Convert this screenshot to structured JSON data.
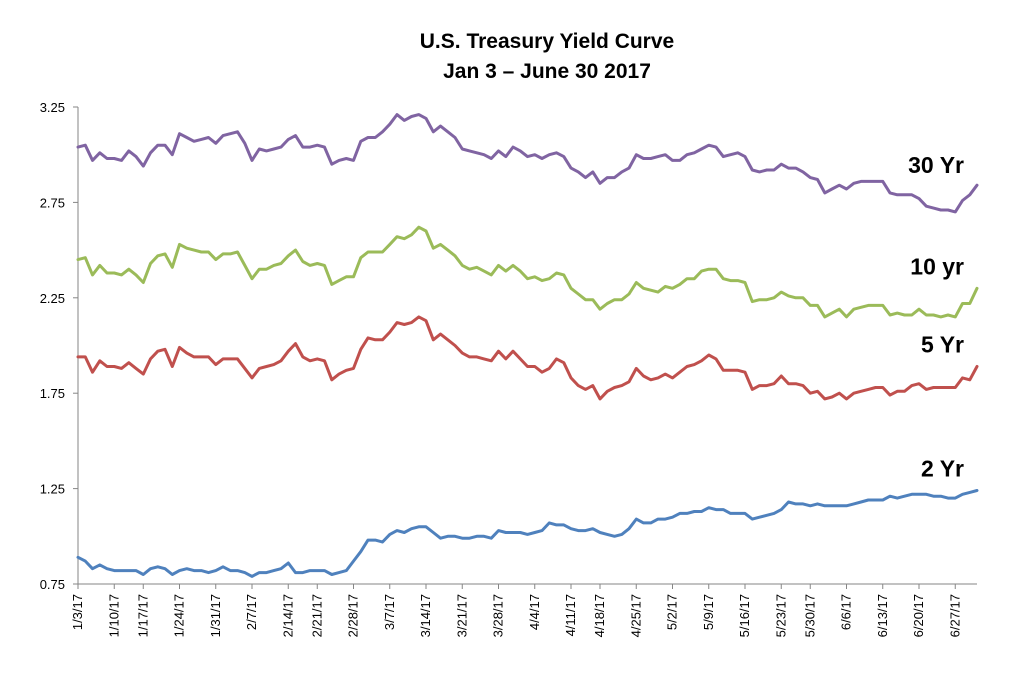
{
  "chart_data": {
    "type": "line",
    "title": "U.S. Treasury Yield Curve",
    "subtitle": "Jan 3 – June 30 2017",
    "xlabel": "",
    "ylabel": "",
    "ylim": [
      0.75,
      3.25
    ],
    "yticks": [
      "0.75",
      "1.25",
      "1.75",
      "2.25",
      "2.75",
      "3.25"
    ],
    "grid": false,
    "legend": "none",
    "x": [
      "1/3/17",
      "1/4/17",
      "1/5/17",
      "1/6/17",
      "1/9/17",
      "1/10/17",
      "1/11/17",
      "1/12/17",
      "1/13/17",
      "1/17/17",
      "1/18/17",
      "1/19/17",
      "1/20/17",
      "1/23/17",
      "1/24/17",
      "1/25/17",
      "1/26/17",
      "1/27/17",
      "1/30/17",
      "1/31/17",
      "2/1/17",
      "2/2/17",
      "2/3/17",
      "2/6/17",
      "2/7/17",
      "2/8/17",
      "2/9/17",
      "2/10/17",
      "2/13/17",
      "2/14/17",
      "2/15/17",
      "2/16/17",
      "2/17/17",
      "2/21/17",
      "2/22/17",
      "2/23/17",
      "2/24/17",
      "2/27/17",
      "2/28/17",
      "3/1/17",
      "3/2/17",
      "3/3/17",
      "3/6/17",
      "3/7/17",
      "3/8/17",
      "3/9/17",
      "3/10/17",
      "3/13/17",
      "3/14/17",
      "3/15/17",
      "3/16/17",
      "3/17/17",
      "3/20/17",
      "3/21/17",
      "3/22/17",
      "3/23/17",
      "3/24/17",
      "3/27/17",
      "3/28/17",
      "3/29/17",
      "3/30/17",
      "3/31/17",
      "4/3/17",
      "4/4/17",
      "4/5/17",
      "4/6/17",
      "4/7/17",
      "4/10/17",
      "4/11/17",
      "4/12/17",
      "4/13/17",
      "4/17/17",
      "4/18/17",
      "4/19/17",
      "4/20/17",
      "4/21/17",
      "4/24/17",
      "4/25/17",
      "4/26/17",
      "4/27/17",
      "4/28/17",
      "5/1/17",
      "5/2/17",
      "5/3/17",
      "5/4/17",
      "5/5/17",
      "5/8/17",
      "5/9/17",
      "5/10/17",
      "5/11/17",
      "5/12/17",
      "5/15/17",
      "5/16/17",
      "5/17/17",
      "5/18/17",
      "5/19/17",
      "5/22/17",
      "5/23/17",
      "5/24/17",
      "5/25/17",
      "5/26/17",
      "5/30/17",
      "5/31/17",
      "6/1/17",
      "6/2/17",
      "6/5/17",
      "6/6/17",
      "6/7/17",
      "6/8/17",
      "6/9/17",
      "6/12/17",
      "6/13/17",
      "6/14/17",
      "6/15/17",
      "6/16/17",
      "6/19/17",
      "6/20/17",
      "6/21/17",
      "6/22/17",
      "6/23/17",
      "6/26/17",
      "6/27/17",
      "6/28/17",
      "6/29/17",
      "6/30/17"
    ],
    "x_tick_labels": [
      "1/3/17",
      "1/10/17",
      "1/17/17",
      "1/24/17",
      "1/31/17",
      "2/7/17",
      "2/14/17",
      "2/21/17",
      "2/28/17",
      "3/7/17",
      "3/14/17",
      "3/21/17",
      "3/28/17",
      "4/4/17",
      "4/11/17",
      "4/18/17",
      "4/25/17",
      "5/2/17",
      "5/9/17",
      "5/16/17",
      "5/23/17",
      "5/30/17",
      "6/6/17",
      "6/13/17",
      "6/20/17",
      "6/27/17"
    ],
    "series": [
      {
        "name": "30 Yr",
        "color": "#8064a2",
        "values": [
          3.04,
          3.05,
          2.97,
          3.01,
          2.98,
          2.98,
          2.97,
          3.02,
          2.99,
          2.94,
          3.01,
          3.05,
          3.05,
          3.0,
          3.11,
          3.09,
          3.07,
          3.08,
          3.09,
          3.06,
          3.1,
          3.11,
          3.12,
          3.06,
          2.97,
          3.03,
          3.02,
          3.03,
          3.04,
          3.08,
          3.1,
          3.04,
          3.04,
          3.05,
          3.04,
          2.95,
          2.97,
          2.98,
          2.97,
          3.07,
          3.09,
          3.09,
          3.12,
          3.16,
          3.21,
          3.18,
          3.2,
          3.21,
          3.19,
          3.12,
          3.15,
          3.12,
          3.09,
          3.03,
          3.02,
          3.01,
          3.0,
          2.98,
          3.02,
          2.99,
          3.04,
          3.02,
          2.99,
          3.0,
          2.98,
          3.0,
          3.01,
          2.99,
          2.93,
          2.91,
          2.88,
          2.91,
          2.85,
          2.88,
          2.88,
          2.91,
          2.93,
          3.0,
          2.98,
          2.98,
          2.99,
          3.0,
          2.97,
          2.97,
          3.0,
          3.01,
          3.03,
          3.05,
          3.04,
          2.99,
          3.0,
          3.01,
          2.99,
          2.92,
          2.91,
          2.92,
          2.92,
          2.95,
          2.93,
          2.93,
          2.91,
          2.88,
          2.87,
          2.8,
          2.82,
          2.84,
          2.82,
          2.85,
          2.86,
          2.86,
          2.86,
          2.86,
          2.8,
          2.79,
          2.79,
          2.79,
          2.77,
          2.73,
          2.72,
          2.71,
          2.71,
          2.7,
          2.76,
          2.79,
          2.84
        ]
      },
      {
        "name": "10 yr",
        "color": "#9bbb59",
        "values": [
          2.45,
          2.46,
          2.37,
          2.42,
          2.38,
          2.38,
          2.37,
          2.4,
          2.37,
          2.33,
          2.43,
          2.47,
          2.48,
          2.41,
          2.53,
          2.51,
          2.5,
          2.49,
          2.49,
          2.45,
          2.48,
          2.48,
          2.49,
          2.42,
          2.35,
          2.4,
          2.4,
          2.42,
          2.43,
          2.47,
          2.5,
          2.44,
          2.42,
          2.43,
          2.42,
          2.32,
          2.34,
          2.36,
          2.36,
          2.46,
          2.49,
          2.49,
          2.49,
          2.53,
          2.57,
          2.56,
          2.58,
          2.62,
          2.6,
          2.51,
          2.53,
          2.5,
          2.47,
          2.42,
          2.4,
          2.41,
          2.39,
          2.37,
          2.42,
          2.39,
          2.42,
          2.39,
          2.35,
          2.36,
          2.34,
          2.35,
          2.38,
          2.37,
          2.3,
          2.27,
          2.24,
          2.24,
          2.19,
          2.22,
          2.24,
          2.24,
          2.27,
          2.33,
          2.3,
          2.29,
          2.28,
          2.31,
          2.3,
          2.32,
          2.35,
          2.35,
          2.39,
          2.4,
          2.4,
          2.35,
          2.34,
          2.34,
          2.33,
          2.23,
          2.24,
          2.24,
          2.25,
          2.28,
          2.26,
          2.25,
          2.25,
          2.21,
          2.21,
          2.15,
          2.17,
          2.19,
          2.15,
          2.19,
          2.2,
          2.21,
          2.21,
          2.21,
          2.16,
          2.17,
          2.16,
          2.16,
          2.19,
          2.16,
          2.16,
          2.15,
          2.16,
          2.15,
          2.22,
          2.22,
          2.3
        ]
      },
      {
        "name": "5 Yr",
        "color": "#c0504d",
        "values": [
          1.94,
          1.94,
          1.86,
          1.92,
          1.89,
          1.89,
          1.88,
          1.91,
          1.88,
          1.85,
          1.93,
          1.97,
          1.98,
          1.89,
          1.99,
          1.96,
          1.94,
          1.94,
          1.94,
          1.9,
          1.93,
          1.93,
          1.93,
          1.88,
          1.83,
          1.88,
          1.89,
          1.9,
          1.92,
          1.97,
          2.01,
          1.94,
          1.92,
          1.93,
          1.92,
          1.82,
          1.85,
          1.87,
          1.88,
          1.98,
          2.04,
          2.03,
          2.03,
          2.07,
          2.12,
          2.11,
          2.12,
          2.15,
          2.13,
          2.03,
          2.06,
          2.03,
          2.0,
          1.96,
          1.94,
          1.94,
          1.93,
          1.92,
          1.97,
          1.93,
          1.97,
          1.93,
          1.89,
          1.89,
          1.86,
          1.88,
          1.93,
          1.91,
          1.83,
          1.79,
          1.77,
          1.79,
          1.72,
          1.76,
          1.78,
          1.79,
          1.81,
          1.88,
          1.84,
          1.82,
          1.83,
          1.85,
          1.83,
          1.86,
          1.89,
          1.9,
          1.92,
          1.95,
          1.93,
          1.87,
          1.87,
          1.87,
          1.86,
          1.77,
          1.79,
          1.79,
          1.8,
          1.84,
          1.8,
          1.8,
          1.79,
          1.75,
          1.76,
          1.72,
          1.73,
          1.75,
          1.72,
          1.75,
          1.76,
          1.77,
          1.78,
          1.78,
          1.74,
          1.76,
          1.76,
          1.79,
          1.8,
          1.77,
          1.78,
          1.78,
          1.78,
          1.78,
          1.83,
          1.82,
          1.89
        ]
      },
      {
        "name": "2 Yr",
        "color": "#4f81bd",
        "values": [
          0.89,
          0.87,
          0.83,
          0.85,
          0.83,
          0.82,
          0.82,
          0.82,
          0.82,
          0.8,
          0.83,
          0.84,
          0.83,
          0.8,
          0.82,
          0.83,
          0.82,
          0.82,
          0.81,
          0.82,
          0.84,
          0.82,
          0.82,
          0.81,
          0.79,
          0.81,
          0.81,
          0.82,
          0.83,
          0.86,
          0.81,
          0.81,
          0.82,
          0.82,
          0.82,
          0.8,
          0.81,
          0.82,
          0.87,
          0.92,
          0.98,
          0.98,
          0.97,
          1.01,
          1.03,
          1.02,
          1.04,
          1.05,
          1.05,
          1.02,
          0.99,
          1.0,
          1.0,
          0.99,
          0.99,
          1.0,
          1.0,
          0.99,
          1.03,
          1.02,
          1.02,
          1.02,
          1.01,
          1.02,
          1.03,
          1.07,
          1.06,
          1.06,
          1.04,
          1.03,
          1.03,
          1.04,
          1.02,
          1.01,
          1.0,
          1.01,
          1.04,
          1.09,
          1.07,
          1.07,
          1.09,
          1.09,
          1.1,
          1.12,
          1.12,
          1.13,
          1.13,
          1.15,
          1.14,
          1.14,
          1.12,
          1.12,
          1.12,
          1.09,
          1.1,
          1.11,
          1.12,
          1.14,
          1.18,
          1.17,
          1.17,
          1.16,
          1.17,
          1.16,
          1.16,
          1.16,
          1.16,
          1.17,
          1.18,
          1.19,
          1.19,
          1.19,
          1.21,
          1.2,
          1.21,
          1.22,
          1.22,
          1.22,
          1.21,
          1.21,
          1.2,
          1.2,
          1.22,
          1.23,
          1.24
        ]
      }
    ]
  }
}
